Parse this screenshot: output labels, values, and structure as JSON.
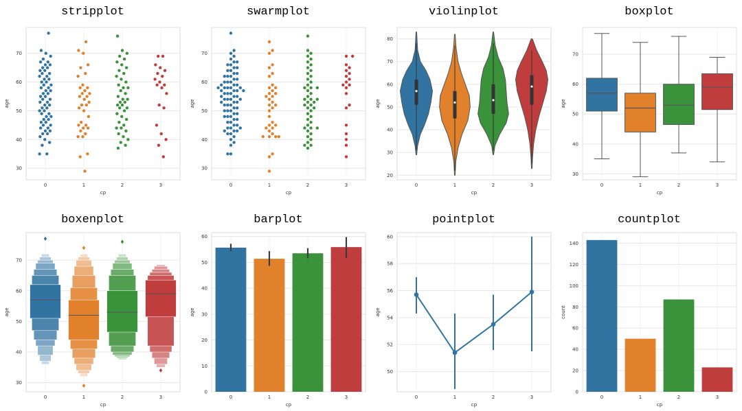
{
  "chart_data": [
    {
      "id": "strip",
      "type": "scatter",
      "title": "stripplot",
      "xlabel": "cp",
      "ylabel": "age",
      "categories": [
        "0",
        "1",
        "2",
        "3"
      ],
      "ylim": [
        26,
        79
      ],
      "yticks": [
        30,
        40,
        50,
        60,
        70
      ],
      "grid": true,
      "colors": [
        "#3274a1",
        "#e1812c",
        "#3a923a",
        "#c03d3e"
      ],
      "series": [
        {
          "name": "0",
          "values": [
            35,
            35,
            38,
            39,
            40,
            41,
            42,
            42,
            43,
            43,
            44,
            44,
            45,
            45,
            46,
            46,
            47,
            47,
            48,
            48,
            49,
            49,
            50,
            50,
            51,
            51,
            52,
            52,
            53,
            53,
            54,
            54,
            55,
            55,
            56,
            56,
            57,
            57,
            58,
            58,
            59,
            59,
            60,
            60,
            61,
            61,
            62,
            62,
            63,
            63,
            64,
            64,
            65,
            65,
            66,
            66,
            67,
            67,
            68,
            69,
            70,
            71,
            77
          ]
        },
        {
          "name": "1",
          "values": [
            29,
            34,
            35,
            41,
            41,
            42,
            43,
            44,
            44,
            45,
            45,
            46,
            48,
            50,
            51,
            52,
            52,
            53,
            54,
            55,
            55,
            56,
            56,
            57,
            58,
            58,
            59,
            62,
            63,
            65,
            66,
            70,
            71,
            74
          ]
        },
        {
          "name": "2",
          "values": [
            37,
            38,
            39,
            40,
            41,
            42,
            43,
            44,
            44,
            45,
            46,
            47,
            48,
            49,
            50,
            51,
            51,
            52,
            52,
            53,
            53,
            54,
            54,
            55,
            56,
            57,
            58,
            58,
            59,
            60,
            61,
            62,
            63,
            64,
            65,
            66,
            67,
            68,
            69,
            70,
            71,
            76
          ]
        },
        {
          "name": "3",
          "values": [
            34,
            38,
            40,
            42,
            45,
            51,
            52,
            56,
            58,
            59,
            59,
            60,
            61,
            62,
            63,
            64,
            65,
            66,
            69,
            69
          ]
        }
      ]
    },
    {
      "id": "swarm",
      "type": "scatter",
      "title": "swarmplot",
      "xlabel": "cp",
      "ylabel": "age",
      "categories": [
        "0",
        "1",
        "2",
        "3"
      ],
      "ylim": [
        26,
        79
      ],
      "yticks": [
        30,
        40,
        50,
        60,
        70
      ],
      "grid": true,
      "colors": [
        "#3274a1",
        "#e1812c",
        "#3a923a",
        "#c03d3e"
      ],
      "series": [
        {
          "name": "0",
          "values": [
            35,
            35,
            38,
            39,
            40,
            41,
            42,
            42,
            43,
            43,
            43,
            44,
            44,
            44,
            45,
            45,
            46,
            46,
            47,
            47,
            48,
            48,
            48,
            49,
            49,
            50,
            50,
            50,
            51,
            51,
            52,
            52,
            52,
            53,
            53,
            53,
            54,
            54,
            54,
            54,
            55,
            55,
            55,
            56,
            56,
            56,
            57,
            57,
            57,
            57,
            58,
            58,
            58,
            58,
            58,
            59,
            59,
            59,
            60,
            60,
            60,
            61,
            61,
            62,
            62,
            62,
            63,
            63,
            64,
            64,
            65,
            65,
            66,
            66,
            67,
            67,
            68,
            69,
            70,
            71,
            77
          ]
        },
        {
          "name": "1",
          "values": [
            29,
            34,
            35,
            41,
            41,
            41,
            41,
            42,
            43,
            44,
            44,
            45,
            45,
            46,
            48,
            50,
            51,
            52,
            52,
            53,
            54,
            55,
            55,
            56,
            56,
            57,
            58,
            58,
            59,
            62,
            63,
            65,
            66,
            70,
            71,
            74
          ]
        },
        {
          "name": "2",
          "values": [
            37,
            38,
            38,
            39,
            40,
            41,
            42,
            43,
            44,
            44,
            44,
            45,
            46,
            47,
            48,
            49,
            50,
            51,
            51,
            52,
            52,
            53,
            53,
            54,
            54,
            54,
            55,
            56,
            57,
            58,
            58,
            58,
            59,
            60,
            61,
            62,
            63,
            64,
            65,
            66,
            67,
            68,
            69,
            70,
            71,
            76
          ]
        },
        {
          "name": "3",
          "values": [
            34,
            38,
            40,
            42,
            45,
            51,
            52,
            56,
            58,
            59,
            59,
            60,
            61,
            62,
            63,
            64,
            65,
            66,
            69,
            69
          ]
        }
      ]
    },
    {
      "id": "violin",
      "type": "violin",
      "title": "violinplot",
      "xlabel": "cp",
      "ylabel": "age",
      "categories": [
        "0",
        "1",
        "2",
        "3"
      ],
      "ylim": [
        18,
        85
      ],
      "yticks": [
        20,
        30,
        40,
        50,
        60,
        70,
        80
      ],
      "grid": true,
      "colors": [
        "#3274a1",
        "#e1812c",
        "#3a923a",
        "#c03d3e"
      ],
      "groups": [
        {
          "min": 29,
          "max": 83,
          "median": 57,
          "q1": 51,
          "q3": 62,
          "profile": [
            [
              29,
              0.02
            ],
            [
              33,
              0.08
            ],
            [
              38,
              0.25
            ],
            [
              42,
              0.5
            ],
            [
              47,
              0.75
            ],
            [
              52,
              0.9
            ],
            [
              57,
              1.0
            ],
            [
              62,
              0.85
            ],
            [
              66,
              0.6
            ],
            [
              70,
              0.25
            ],
            [
              75,
              0.08
            ],
            [
              83,
              0.02
            ]
          ]
        },
        {
          "min": 20,
          "max": 82,
          "median": 52,
          "q1": 45,
          "q3": 57,
          "profile": [
            [
              20,
              0.02
            ],
            [
              26,
              0.06
            ],
            [
              32,
              0.2
            ],
            [
              38,
              0.45
            ],
            [
              44,
              0.8
            ],
            [
              50,
              0.95
            ],
            [
              55,
              0.9
            ],
            [
              60,
              0.65
            ],
            [
              65,
              0.4
            ],
            [
              70,
              0.2
            ],
            [
              76,
              0.08
            ],
            [
              82,
              0.02
            ]
          ]
        },
        {
          "min": 29,
          "max": 83,
          "median": 53,
          "q1": 47,
          "q3": 60,
          "profile": [
            [
              29,
              0.02
            ],
            [
              33,
              0.1
            ],
            [
              38,
              0.4
            ],
            [
              43,
              0.8
            ],
            [
              47,
              0.95
            ],
            [
              52,
              0.85
            ],
            [
              57,
              0.8
            ],
            [
              62,
              0.75
            ],
            [
              67,
              0.6
            ],
            [
              72,
              0.3
            ],
            [
              77,
              0.12
            ],
            [
              83,
              0.02
            ]
          ]
        },
        {
          "min": 23,
          "max": 80,
          "median": 59,
          "q1": 51,
          "q3": 64,
          "profile": [
            [
              23,
              0.02
            ],
            [
              28,
              0.05
            ],
            [
              34,
              0.12
            ],
            [
              40,
              0.25
            ],
            [
              46,
              0.45
            ],
            [
              52,
              0.7
            ],
            [
              57,
              0.9
            ],
            [
              62,
              1.0
            ],
            [
              66,
              0.9
            ],
            [
              70,
              0.65
            ],
            [
              75,
              0.3
            ],
            [
              80,
              0.04
            ]
          ]
        }
      ]
    },
    {
      "id": "box",
      "type": "box",
      "title": "boxplot",
      "xlabel": "cp",
      "ylabel": "age",
      "categories": [
        "0",
        "1",
        "2",
        "3"
      ],
      "ylim": [
        28,
        79
      ],
      "yticks": [
        30,
        40,
        50,
        60,
        70
      ],
      "grid": true,
      "colors": [
        "#3274a1",
        "#e1812c",
        "#3a923a",
        "#c03d3e"
      ],
      "groups": [
        {
          "min": 35,
          "q1": 51,
          "median": 57,
          "q3": 62,
          "max": 77
        },
        {
          "min": 29,
          "q1": 44,
          "median": 52,
          "q3": 57,
          "max": 74
        },
        {
          "min": 37,
          "q1": 46.5,
          "median": 53,
          "q3": 60,
          "max": 76
        },
        {
          "min": 34,
          "q1": 51.5,
          "median": 59,
          "q3": 63.5,
          "max": 69
        }
      ]
    },
    {
      "id": "boxen",
      "type": "boxen",
      "title": "boxenplot",
      "xlabel": "cp",
      "ylabel": "age",
      "categories": [
        "0",
        "1",
        "2",
        "3"
      ],
      "ylim": [
        27,
        79
      ],
      "yticks": [
        30,
        40,
        50,
        60,
        70
      ],
      "grid": true,
      "colors": [
        "#3274a1",
        "#e1812c",
        "#3a923a",
        "#c03d3e"
      ],
      "groups": [
        {
          "median": 57,
          "levels": [
            [
              51,
              62
            ],
            [
              47,
              65
            ],
            [
              44,
              67
            ],
            [
              42,
              69
            ],
            [
              39,
              70
            ],
            [
              37,
              71
            ],
            [
              36,
              72
            ]
          ],
          "outliers": [
            77
          ]
        },
        {
          "median": 52,
          "levels": [
            [
              44,
              57
            ],
            [
              41,
              61
            ],
            [
              38,
              65
            ],
            [
              36,
              68
            ],
            [
              34,
              70
            ],
            [
              33,
              71
            ],
            [
              32,
              72
            ]
          ],
          "outliers": [
            29,
            74
          ]
        },
        {
          "median": 53,
          "levels": [
            [
              46.5,
              60
            ],
            [
              42,
              65
            ],
            [
              40,
              67
            ],
            [
              39,
              69
            ],
            [
              38.5,
              70
            ],
            [
              38,
              71
            ],
            [
              37.5,
              72
            ]
          ],
          "outliers": [
            76
          ]
        },
        {
          "median": 59,
          "levels": [
            [
              51.5,
              63.5
            ],
            [
              42,
              65
            ],
            [
              40,
              66
            ],
            [
              38,
              67
            ],
            [
              36,
              68
            ],
            [
              35,
              68.5
            ]
          ],
          "outliers": [
            34
          ]
        }
      ]
    },
    {
      "id": "bar",
      "type": "bar",
      "title": "barplot",
      "xlabel": "cp",
      "ylabel": "age",
      "categories": [
        "0",
        "1",
        "2",
        "3"
      ],
      "values": [
        55.7,
        51.4,
        53.5,
        55.9
      ],
      "error_low": [
        54.3,
        48.7,
        51.6,
        51.7
      ],
      "error_high": [
        57.2,
        54.4,
        55.5,
        59.8
      ],
      "ylim": [
        0,
        61.5
      ],
      "yticks": [
        0,
        10,
        20,
        30,
        40,
        50,
        60
      ],
      "grid": true,
      "colors": [
        "#3274a1",
        "#e1812c",
        "#3a923a",
        "#c03d3e"
      ]
    },
    {
      "id": "point",
      "type": "line",
      "title": "pointplot",
      "xlabel": "cp",
      "ylabel": "age",
      "categories": [
        "0",
        "1",
        "2",
        "3"
      ],
      "values": [
        55.7,
        51.4,
        53.5,
        55.9
      ],
      "error_low": [
        54.3,
        48.7,
        51.6,
        51.5
      ],
      "error_high": [
        57.0,
        54.3,
        55.7,
        60.0
      ],
      "ylim": [
        48.5,
        60.3
      ],
      "yticks": [
        50,
        52,
        54,
        56,
        58,
        60
      ],
      "grid": true,
      "colors": [
        "#3274a1"
      ]
    },
    {
      "id": "count",
      "type": "bar",
      "title": "countplot",
      "xlabel": "cp",
      "ylabel": "count",
      "categories": [
        "0",
        "1",
        "2",
        "3"
      ],
      "values": [
        143,
        50,
        87,
        23
      ],
      "ylim": [
        0,
        150
      ],
      "yticks": [
        0,
        20,
        40,
        60,
        80,
        100,
        120,
        140
      ],
      "grid": true,
      "colors": [
        "#3274a1",
        "#e1812c",
        "#3a923a",
        "#c03d3e"
      ]
    }
  ]
}
